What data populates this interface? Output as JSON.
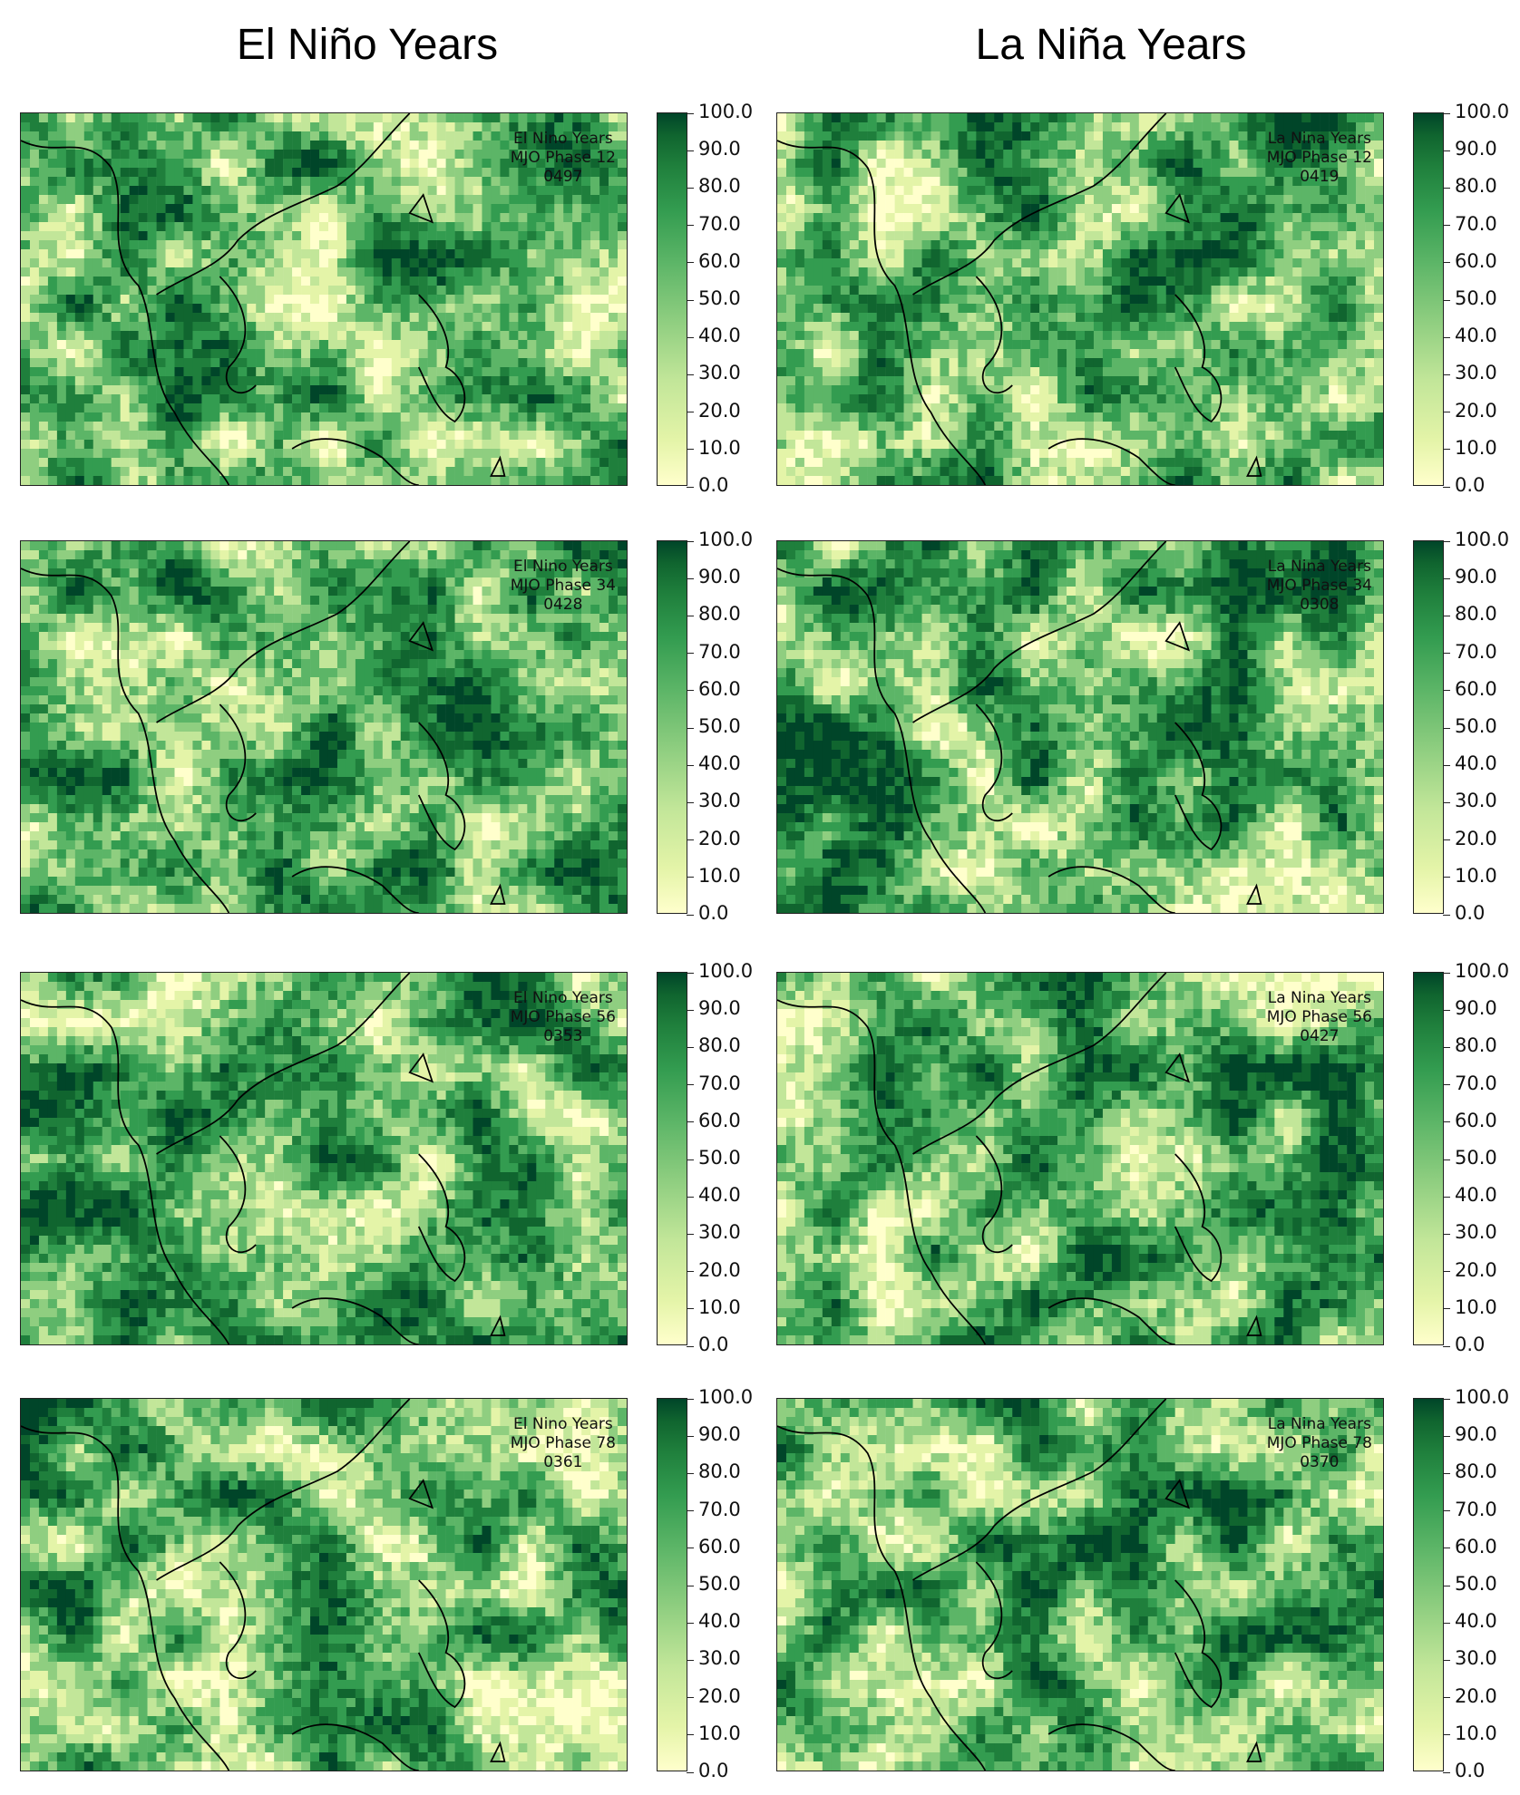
{
  "column_titles": [
    "El Niño Years",
    "La Niña Years"
  ],
  "colorbar_ticks": [
    "0.0",
    "10.0",
    "20.0",
    "30.0",
    "40.0",
    "50.0",
    "60.0",
    "70.0",
    "80.0",
    "90.0",
    "100.0"
  ],
  "colors": {
    "low": "#ffffcc",
    "mid_low": "#c2e699",
    "mid": "#5cb567",
    "high": "#1f7f3c",
    "max": "#004529",
    "coast": "#000000"
  },
  "panels": [
    {
      "id": "el-12",
      "label_line1": "El Nino Years",
      "label_line2": "MJO Phase 12",
      "label_line3": "0497"
    },
    {
      "id": "la-12",
      "label_line1": "La Nina Years",
      "label_line2": "MJO Phase 12",
      "label_line3": "0419"
    },
    {
      "id": "el-34",
      "label_line1": "El Nino Years",
      "label_line2": "MJO Phase 34",
      "label_line3": "0428"
    },
    {
      "id": "la-34",
      "label_line1": "La Nina Years",
      "label_line2": "MJO Phase 34",
      "label_line3": "0308"
    },
    {
      "id": "el-56",
      "label_line1": "El Nino Years",
      "label_line2": "MJO Phase 56",
      "label_line3": "0353"
    },
    {
      "id": "la-56",
      "label_line1": "La Nina Years",
      "label_line2": "MJO Phase 56",
      "label_line3": "0427"
    },
    {
      "id": "el-78",
      "label_line1": "El Nino Years",
      "label_line2": "MJO Phase 78",
      "label_line3": "0361"
    },
    {
      "id": "la-78",
      "label_line1": "La Nina Years",
      "label_line2": "MJO Phase 78",
      "label_line3": "0370"
    }
  ]
}
